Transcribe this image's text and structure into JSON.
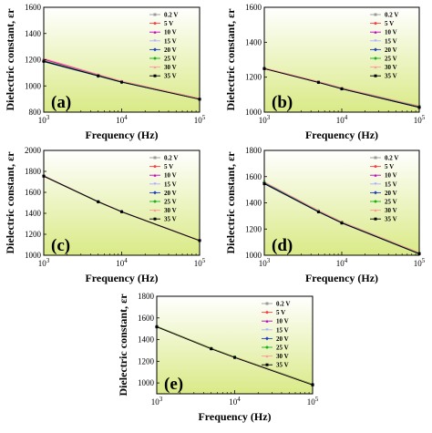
{
  "figure": {
    "colors": {
      "bg_top": "#ffffff",
      "bg_bottom": "#d9ea86",
      "series": [
        "#9a9a9a",
        "#ff4040",
        "#c000c0",
        "#b0b0ff",
        "#1f3fbf",
        "#19b019",
        "#ff9a9a",
        "#000000"
      ]
    }
  },
  "chart_data": [
    {
      "type": "line",
      "label": "(a)",
      "xlabel": "Frequency (Hz)",
      "ylabel": "Dielectric constant, εr",
      "xscale": "log",
      "xlim": [
        1000,
        100000
      ],
      "ylim": [
        800,
        1600
      ],
      "yticks": [
        800,
        1000,
        1200,
        1400,
        1600
      ],
      "xticks": [
        {
          "v": 1000,
          "b": "10",
          "e": "3"
        },
        {
          "v": 10000,
          "b": "10",
          "e": "4"
        },
        {
          "v": 100000,
          "b": "10",
          "e": "5"
        }
      ],
      "x": [
        1000,
        5000,
        10000,
        100000
      ],
      "series": [
        {
          "name": "0.2 V",
          "values": [
            1190,
            1078,
            1030,
            900
          ]
        },
        {
          "name": "5 V",
          "values": [
            1200,
            1083,
            1034,
            902
          ]
        },
        {
          "name": "10 V",
          "values": [
            1205,
            1085,
            1036,
            904
          ]
        },
        {
          "name": "15 V",
          "values": [
            1195,
            1080,
            1032,
            901
          ]
        },
        {
          "name": "20 V",
          "values": [
            1185,
            1075,
            1028,
            899
          ]
        },
        {
          "name": "25 V",
          "values": [
            1192,
            1079,
            1031,
            900
          ]
        },
        {
          "name": "30 V",
          "values": [
            1210,
            1088,
            1038,
            905
          ]
        },
        {
          "name": "35 V",
          "values": [
            1188,
            1077,
            1029,
            898
          ]
        }
      ]
    },
    {
      "type": "line",
      "label": "(b)",
      "xlabel": "Frequency (Hz)",
      "ylabel": "Dielectric constant, εr",
      "xscale": "log",
      "xlim": [
        1000,
        100000
      ],
      "ylim": [
        1000,
        1600
      ],
      "yticks": [
        1000,
        1200,
        1400,
        1600
      ],
      "xticks": [
        {
          "v": 1000,
          "b": "10",
          "e": "3"
        },
        {
          "v": 10000,
          "b": "10",
          "e": "4"
        },
        {
          "v": 100000,
          "b": "10",
          "e": "5"
        }
      ],
      "x": [
        1000,
        5000,
        10000,
        100000
      ],
      "series": [
        {
          "name": "0.2 V",
          "values": [
            1250,
            1172,
            1135,
            1030
          ]
        },
        {
          "name": "5 V",
          "values": [
            1252,
            1174,
            1137,
            1032
          ]
        },
        {
          "name": "10 V",
          "values": [
            1249,
            1170,
            1133,
            1026
          ]
        },
        {
          "name": "15 V",
          "values": [
            1251,
            1173,
            1136,
            1031
          ]
        },
        {
          "name": "20 V",
          "values": [
            1250,
            1171,
            1134,
            1028
          ]
        },
        {
          "name": "25 V",
          "values": [
            1252,
            1175,
            1138,
            1034
          ]
        },
        {
          "name": "30 V",
          "values": [
            1253,
            1176,
            1140,
            1036
          ]
        },
        {
          "name": "35 V",
          "values": [
            1249,
            1170,
            1133,
            1027
          ]
        }
      ]
    },
    {
      "type": "line",
      "label": "(c)",
      "xlabel": "Frequency (Hz)",
      "ylabel": "Dielectric constant, εr",
      "xscale": "log",
      "xlim": [
        1000,
        100000
      ],
      "ylim": [
        1000,
        2000
      ],
      "yticks": [
        1000,
        1200,
        1400,
        1600,
        1800,
        2000
      ],
      "xticks": [
        {
          "v": 1000,
          "b": "10",
          "e": "3"
        },
        {
          "v": 10000,
          "b": "10",
          "e": "4"
        },
        {
          "v": 100000,
          "b": "10",
          "e": "5"
        }
      ],
      "x": [
        1000,
        5000,
        10000,
        100000
      ],
      "series": [
        {
          "name": "0.2 V",
          "values": [
            1755,
            1510,
            1415,
            1140
          ]
        },
        {
          "name": "5 V",
          "values": [
            1752,
            1508,
            1413,
            1138
          ]
        },
        {
          "name": "10 V",
          "values": [
            1758,
            1512,
            1417,
            1142
          ]
        },
        {
          "name": "15 V",
          "values": [
            1754,
            1509,
            1414,
            1139
          ]
        },
        {
          "name": "20 V",
          "values": [
            1756,
            1511,
            1416,
            1141
          ]
        },
        {
          "name": "25 V",
          "values": [
            1753,
            1508,
            1414,
            1139
          ]
        },
        {
          "name": "30 V",
          "values": [
            1757,
            1512,
            1416,
            1142
          ]
        },
        {
          "name": "35 V",
          "values": [
            1755,
            1510,
            1415,
            1140
          ]
        }
      ]
    },
    {
      "type": "line",
      "label": "(d)",
      "xlabel": "Frequency (Hz)",
      "ylabel": "Dielectric constant, εr",
      "xscale": "log",
      "xlim": [
        1000,
        100000
      ],
      "ylim": [
        1000,
        1800
      ],
      "yticks": [
        1000,
        1200,
        1400,
        1600,
        1800
      ],
      "xticks": [
        {
          "v": 1000,
          "b": "10",
          "e": "3"
        },
        {
          "v": 10000,
          "b": "10",
          "e": "4"
        },
        {
          "v": 100000,
          "b": "10",
          "e": "5"
        }
      ],
      "x": [
        1000,
        5000,
        10000,
        100000
      ],
      "series": [
        {
          "name": "0.2 V",
          "values": [
            1545,
            1330,
            1245,
            1010
          ]
        },
        {
          "name": "5 V",
          "values": [
            1550,
            1334,
            1249,
            1014
          ]
        },
        {
          "name": "10 V",
          "values": [
            1555,
            1338,
            1252,
            1016
          ]
        },
        {
          "name": "15 V",
          "values": [
            1548,
            1332,
            1247,
            1012
          ]
        },
        {
          "name": "20 V",
          "values": [
            1552,
            1336,
            1250,
            1015
          ]
        },
        {
          "name": "25 V",
          "values": [
            1558,
            1340,
            1255,
            1018
          ]
        },
        {
          "name": "30 V",
          "values": [
            1560,
            1342,
            1256,
            1020
          ]
        },
        {
          "name": "35 V",
          "values": [
            1546,
            1331,
            1246,
            1011
          ]
        }
      ]
    },
    {
      "type": "line",
      "label": "(e)",
      "xlabel": "Frequency (Hz)",
      "ylabel": "Dielectric constant, εr",
      "xscale": "log",
      "xlim": [
        1000,
        100000
      ],
      "ylim": [
        900,
        1800
      ],
      "yticks": [
        1000,
        1200,
        1400,
        1600,
        1800
      ],
      "xticks": [
        {
          "v": 1000,
          "b": "10",
          "e": "3"
        },
        {
          "v": 10000,
          "b": "10",
          "e": "4"
        },
        {
          "v": 100000,
          "b": "10",
          "e": "5"
        }
      ],
      "x": [
        1000,
        5000,
        10000,
        100000
      ],
      "series": [
        {
          "name": "0.2 V",
          "values": [
            1520,
            1318,
            1238,
            985
          ]
        },
        {
          "name": "5 V",
          "values": [
            1522,
            1320,
            1240,
            988
          ]
        },
        {
          "name": "10 V",
          "values": [
            1518,
            1316,
            1236,
            983
          ]
        },
        {
          "name": "15 V",
          "values": [
            1521,
            1319,
            1239,
            986
          ]
        },
        {
          "name": "20 V",
          "values": [
            1519,
            1317,
            1237,
            984
          ]
        },
        {
          "name": "25 V",
          "values": [
            1523,
            1321,
            1241,
            989
          ]
        },
        {
          "name": "30 V",
          "values": [
            1520,
            1318,
            1238,
            986
          ]
        },
        {
          "name": "35 V",
          "values": [
            1517,
            1315,
            1235,
            982
          ]
        }
      ]
    }
  ]
}
